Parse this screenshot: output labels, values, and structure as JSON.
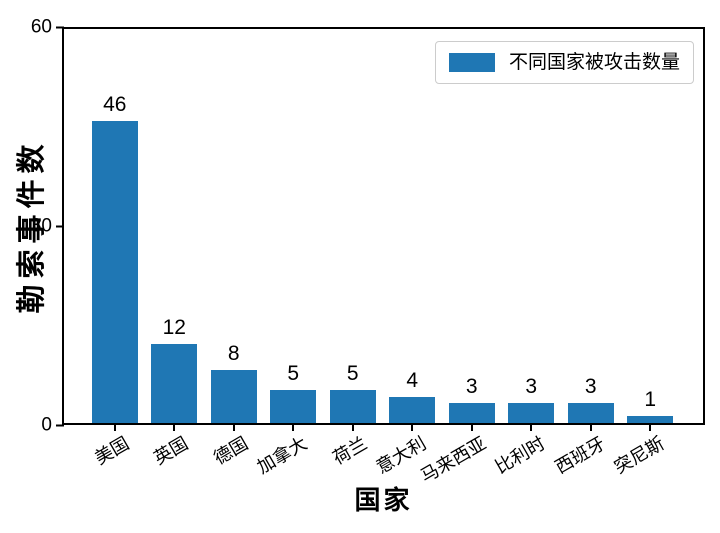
{
  "chart_data": {
    "type": "bar",
    "title": "",
    "categories": [
      "美国",
      "英国",
      "德国",
      "加拿大",
      "荷兰",
      "意大利",
      "马来西亚",
      "比利时",
      "西班牙",
      "突尼斯"
    ],
    "values": [
      46,
      12,
      8,
      5,
      5,
      4,
      3,
      3,
      3,
      1
    ],
    "xlabel": "国家",
    "ylabel": "勒索事件数",
    "ylim": [
      0,
      60
    ],
    "yticks": [
      0,
      30,
      60
    ],
    "legend": {
      "label": "不同国家被攻击数量",
      "position": "upper right"
    },
    "bar_color": "#1f77b4",
    "axis_color": "#000000",
    "legend_border_color": "#cccccc",
    "background_color": "#ffffff",
    "grid": false,
    "value_labels_shown": true,
    "xtick_rotation_deg": 30
  }
}
